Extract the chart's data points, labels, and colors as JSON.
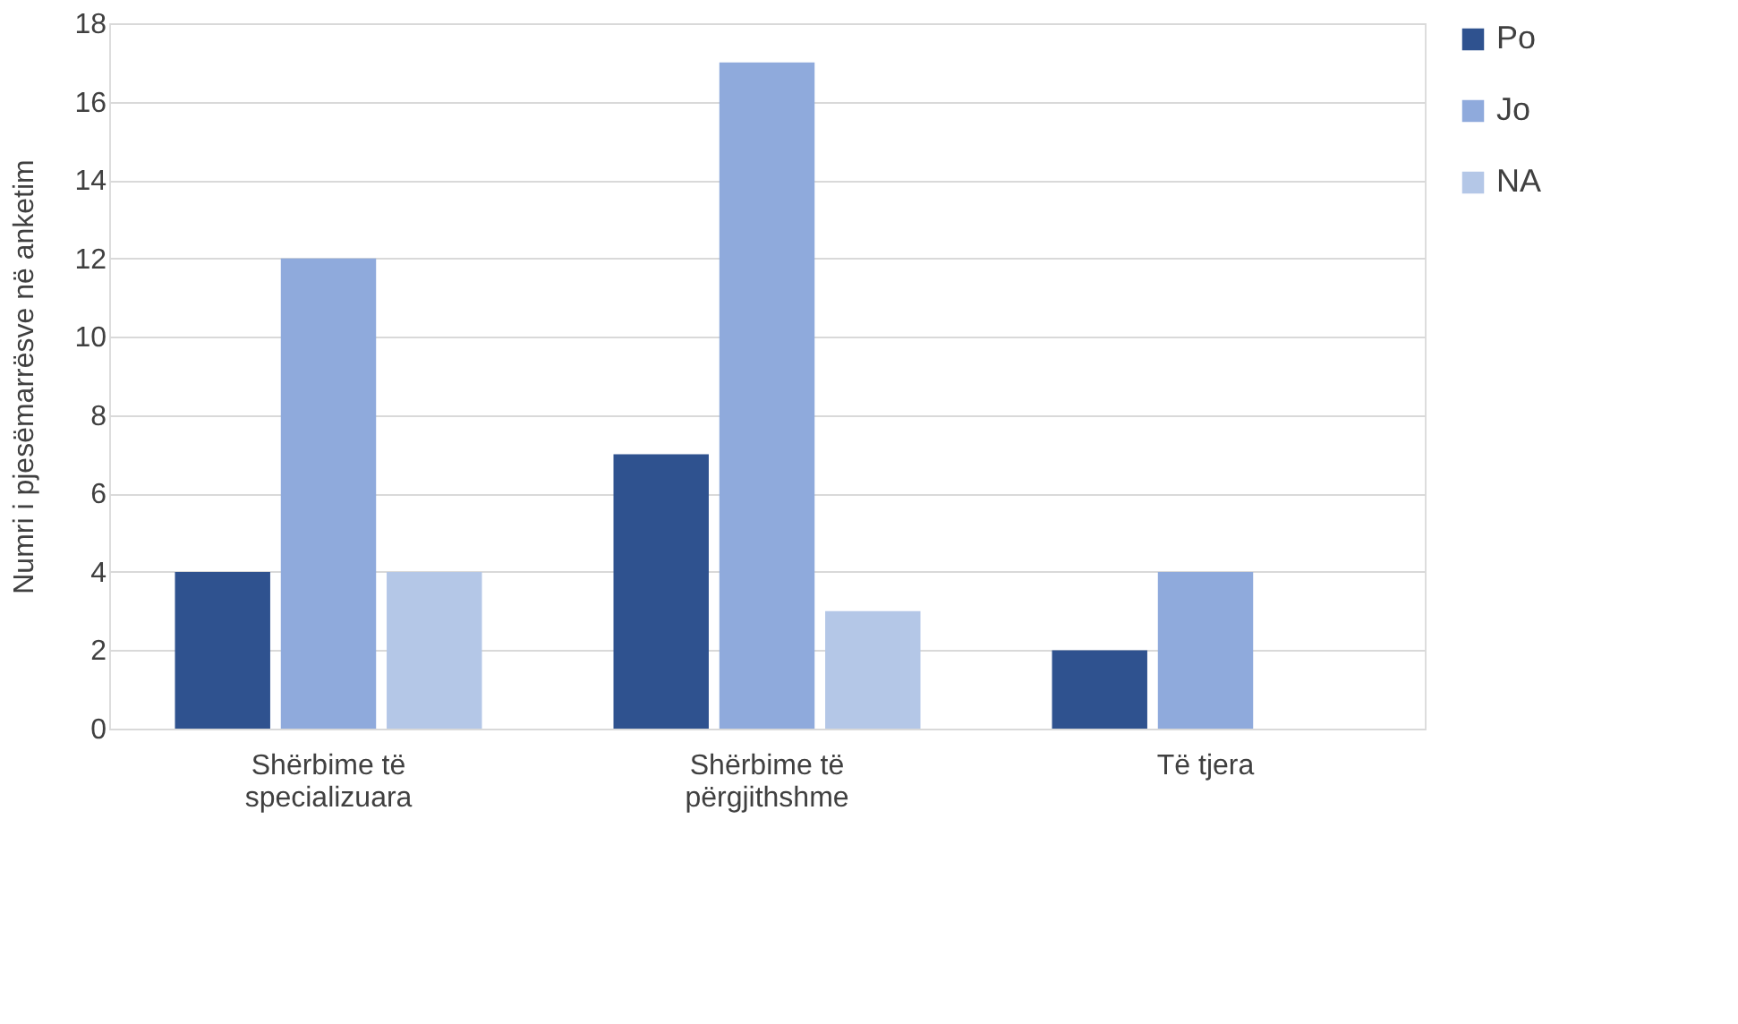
{
  "chart_data": {
    "type": "bar",
    "ylabel": "Numri i pjesëmarrësve në anketim",
    "categories": [
      "Shërbime të specializuara",
      "Shërbime të përgjithshme",
      "Të tjera"
    ],
    "series": [
      {
        "name": "Po",
        "color": "#2f528f",
        "values": [
          4,
          7,
          2
        ]
      },
      {
        "name": "Jo",
        "color": "#8faadc",
        "values": [
          12,
          17,
          4
        ]
      },
      {
        "name": "NA",
        "color": "#b4c7e7",
        "values": [
          4,
          3,
          0
        ]
      }
    ],
    "ylim": [
      0,
      18
    ],
    "yticks": [
      0,
      2,
      4,
      6,
      8,
      10,
      12,
      14,
      16,
      18
    ],
    "grid": "y",
    "legend": "right"
  }
}
